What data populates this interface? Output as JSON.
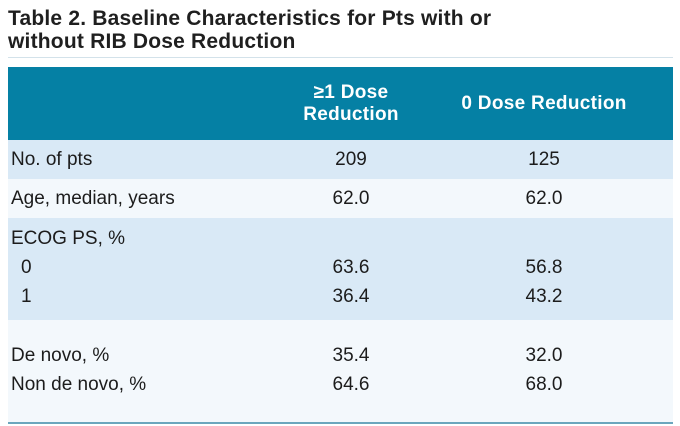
{
  "title": {
    "line1": "Table 2. Baseline Characteristics for Pts with or",
    "line2": "without RIB Dose Reduction"
  },
  "colors": {
    "header_bg": "#0580a4",
    "header_text": "#ffffff",
    "row_blue": "#d9e9f6",
    "row_light": "#f3f8fc",
    "body_text": "#1c1c1c",
    "title_text": "#1f1f1f",
    "top_rule": "#d3e2ea",
    "bottom_rule": "#6ba6bd"
  },
  "table": {
    "header": {
      "col1": "",
      "col2": "≥1 Dose\nReduction",
      "col3": "0 Dose Reduction"
    },
    "sections": [
      {
        "shade": "blue",
        "pad": "none",
        "lines": [
          {
            "label": "No. of pts",
            "indent": false,
            "v1": "209",
            "v2": "125"
          }
        ]
      },
      {
        "shade": "light",
        "pad": "none",
        "lines": [
          {
            "label": "Age, median, years",
            "indent": false,
            "v1": "62.0",
            "v2": "62.0"
          }
        ]
      },
      {
        "shade": "blue",
        "pad": "ecog",
        "lines": [
          {
            "label": "ECOG PS, %",
            "indent": false,
            "v1": "",
            "v2": ""
          },
          {
            "label": "0",
            "indent": true,
            "v1": "63.6",
            "v2": "56.8"
          },
          {
            "label": "1",
            "indent": true,
            "v1": "36.4",
            "v2": "43.2"
          }
        ]
      },
      {
        "shade": "light",
        "pad": "novo",
        "lines": [
          {
            "label": "De novo, %",
            "indent": false,
            "v1": "35.4",
            "v2": "32.0"
          },
          {
            "label": "Non de novo, %",
            "indent": false,
            "v1": "64.6",
            "v2": "68.0"
          }
        ]
      }
    ]
  }
}
